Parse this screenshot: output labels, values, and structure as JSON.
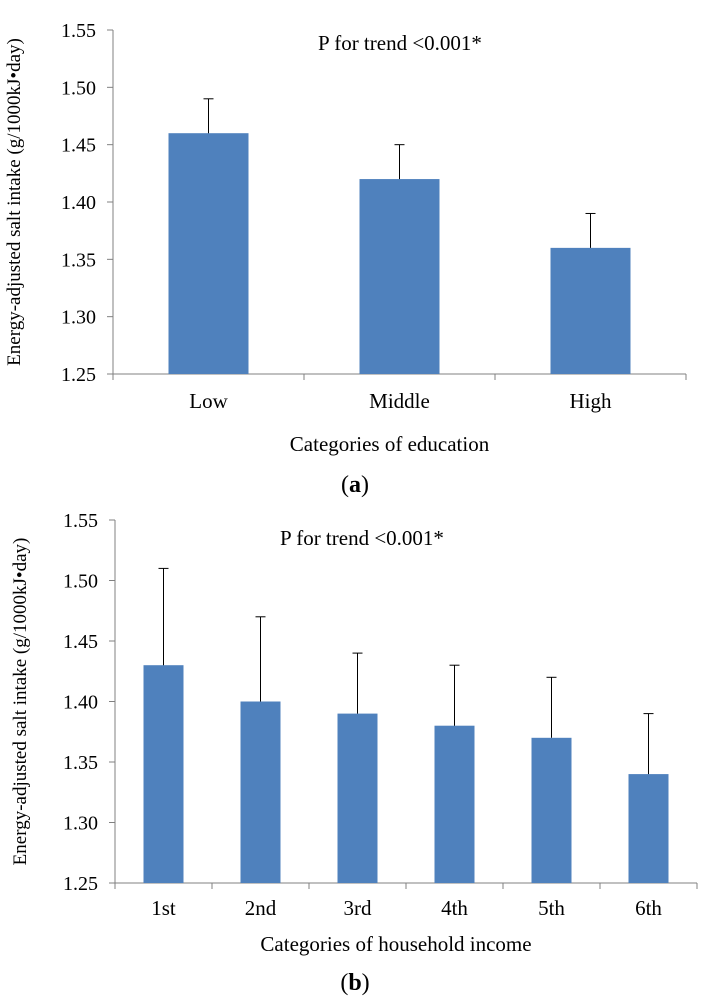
{
  "chart_data": [
    {
      "type": "bar",
      "panel_label": "a",
      "categories": [
        "Low",
        "Middle",
        "High"
      ],
      "values": [
        1.46,
        1.42,
        1.36
      ],
      "error_upper": [
        1.49,
        1.45,
        1.39
      ],
      "annotation": "P for trend <0.001*",
      "xlabel": "Categories of education",
      "ylabel": "Energy-adjusted salt intake (g/1000kJ•day)",
      "ylim": [
        1.25,
        1.55
      ],
      "yticks": [
        "1.25",
        "1.30",
        "1.35",
        "1.40",
        "1.45",
        "1.50",
        "1.55"
      ],
      "bar_color": "#4F81BD",
      "grid": false
    },
    {
      "type": "bar",
      "panel_label": "b",
      "categories": [
        "1st",
        "2nd",
        "3rd",
        "4th",
        "5th",
        "6th"
      ],
      "values": [
        1.43,
        1.4,
        1.39,
        1.38,
        1.37,
        1.34
      ],
      "error_upper": [
        1.51,
        1.47,
        1.44,
        1.43,
        1.42,
        1.39
      ],
      "annotation": "P for trend <0.001*",
      "xlabel": "Categories of household income",
      "ylabel": "Energy-adjusted salt intake (g/1000kJ•day)",
      "ylim": [
        1.25,
        1.55
      ],
      "yticks": [
        "1.25",
        "1.30",
        "1.35",
        "1.40",
        "1.45",
        "1.50",
        "1.55"
      ],
      "bar_color": "#4F81BD",
      "grid": false
    }
  ]
}
